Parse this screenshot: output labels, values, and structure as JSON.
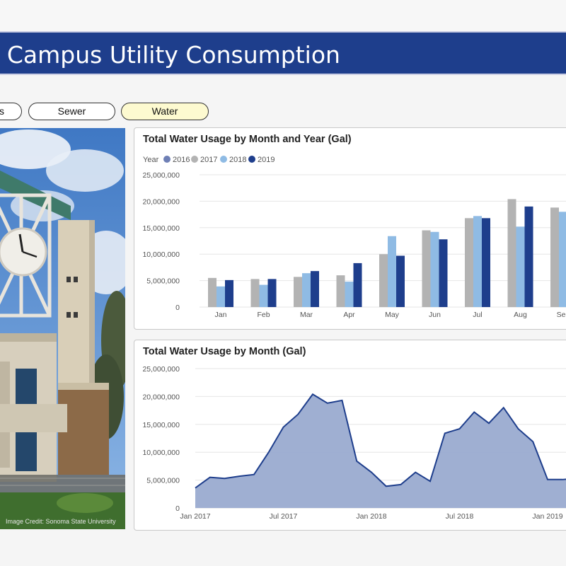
{
  "header": {
    "title": "al Campus Utility Consumption"
  },
  "buttons": {
    "prev_partial": "s",
    "sewer": "Sewer",
    "water": "Water"
  },
  "photo": {
    "credit": "Image Credit: Sonoma State University"
  },
  "colors": {
    "banner": "#1e3e8c",
    "y2016": "#6e7fb5",
    "y2017": "#b3b3b3",
    "y2018": "#8fbbe4",
    "y2019": "#1e3e8c",
    "area_fill": "#9aabd0",
    "area_line": "#1e3e8c",
    "active_button": "#fdfad0"
  },
  "chart_data": [
    {
      "type": "bar",
      "title": "Total Water Usage by Month and Year (Gal)",
      "legend_title": "Year",
      "legend_position": "top-left",
      "categories": [
        "Jan",
        "Feb",
        "Mar",
        "Apr",
        "May",
        "Jun",
        "Jul",
        "Aug",
        "Sep"
      ],
      "ylim": [
        0,
        25000000
      ],
      "yticks": [
        0,
        5000000,
        10000000,
        15000000,
        20000000,
        25000000
      ],
      "ytick_labels": [
        "0",
        "5,000,000",
        "10,000,000",
        "15,000,000",
        "20,000,000",
        "25,000,000"
      ],
      "grid": true,
      "series": [
        {
          "name": "2016",
          "values": [
            null,
            null,
            null,
            null,
            null,
            null,
            null,
            null,
            null
          ]
        },
        {
          "name": "2017",
          "values": [
            5500000,
            5300000,
            5700000,
            6000000,
            10000000,
            14500000,
            16800000,
            20400000,
            18800000
          ]
        },
        {
          "name": "2018",
          "values": [
            3900000,
            4200000,
            6400000,
            4800000,
            13400000,
            14200000,
            17200000,
            15200000,
            18000000
          ]
        },
        {
          "name": "2019",
          "values": [
            5100000,
            5300000,
            6800000,
            8300000,
            9700000,
            12800000,
            16800000,
            19000000,
            null
          ]
        }
      ]
    },
    {
      "type": "area",
      "title": "Total Water Usage by Month (Gal)",
      "x": [
        "2017-01",
        "2017-02",
        "2017-03",
        "2017-04",
        "2017-05",
        "2017-06",
        "2017-07",
        "2017-08",
        "2017-09",
        "2017-10",
        "2017-11",
        "2017-12",
        "2018-01",
        "2018-02",
        "2018-03",
        "2018-04",
        "2018-05",
        "2018-06",
        "2018-07",
        "2018-08",
        "2018-09",
        "2018-10",
        "2018-11",
        "2018-12",
        "2019-01",
        "2019-02",
        "2019-03"
      ],
      "values": [
        3600000,
        5500000,
        5300000,
        5700000,
        6000000,
        10000000,
        14500000,
        16800000,
        20400000,
        18800000,
        19300000,
        8400000,
        6400000,
        3900000,
        4200000,
        6400000,
        4800000,
        13400000,
        14200000,
        17200000,
        15200000,
        18000000,
        14200000,
        11900000,
        5100000,
        5100000,
        5300000
      ],
      "xtick_labels": [
        "Jan 2017",
        "Jul 2017",
        "Jan 2018",
        "Jul 2018",
        "Jan 2019"
      ],
      "xticks": [
        "2017-01",
        "2017-07",
        "2018-01",
        "2018-07",
        "2019-01"
      ],
      "ylim": [
        0,
        25000000
      ],
      "yticks": [
        0,
        5000000,
        10000000,
        15000000,
        20000000,
        25000000
      ],
      "ytick_labels": [
        "0",
        "5,000,000",
        "10,000,000",
        "15,000,000",
        "20,000,000",
        "25,000,000"
      ],
      "grid": true
    }
  ]
}
